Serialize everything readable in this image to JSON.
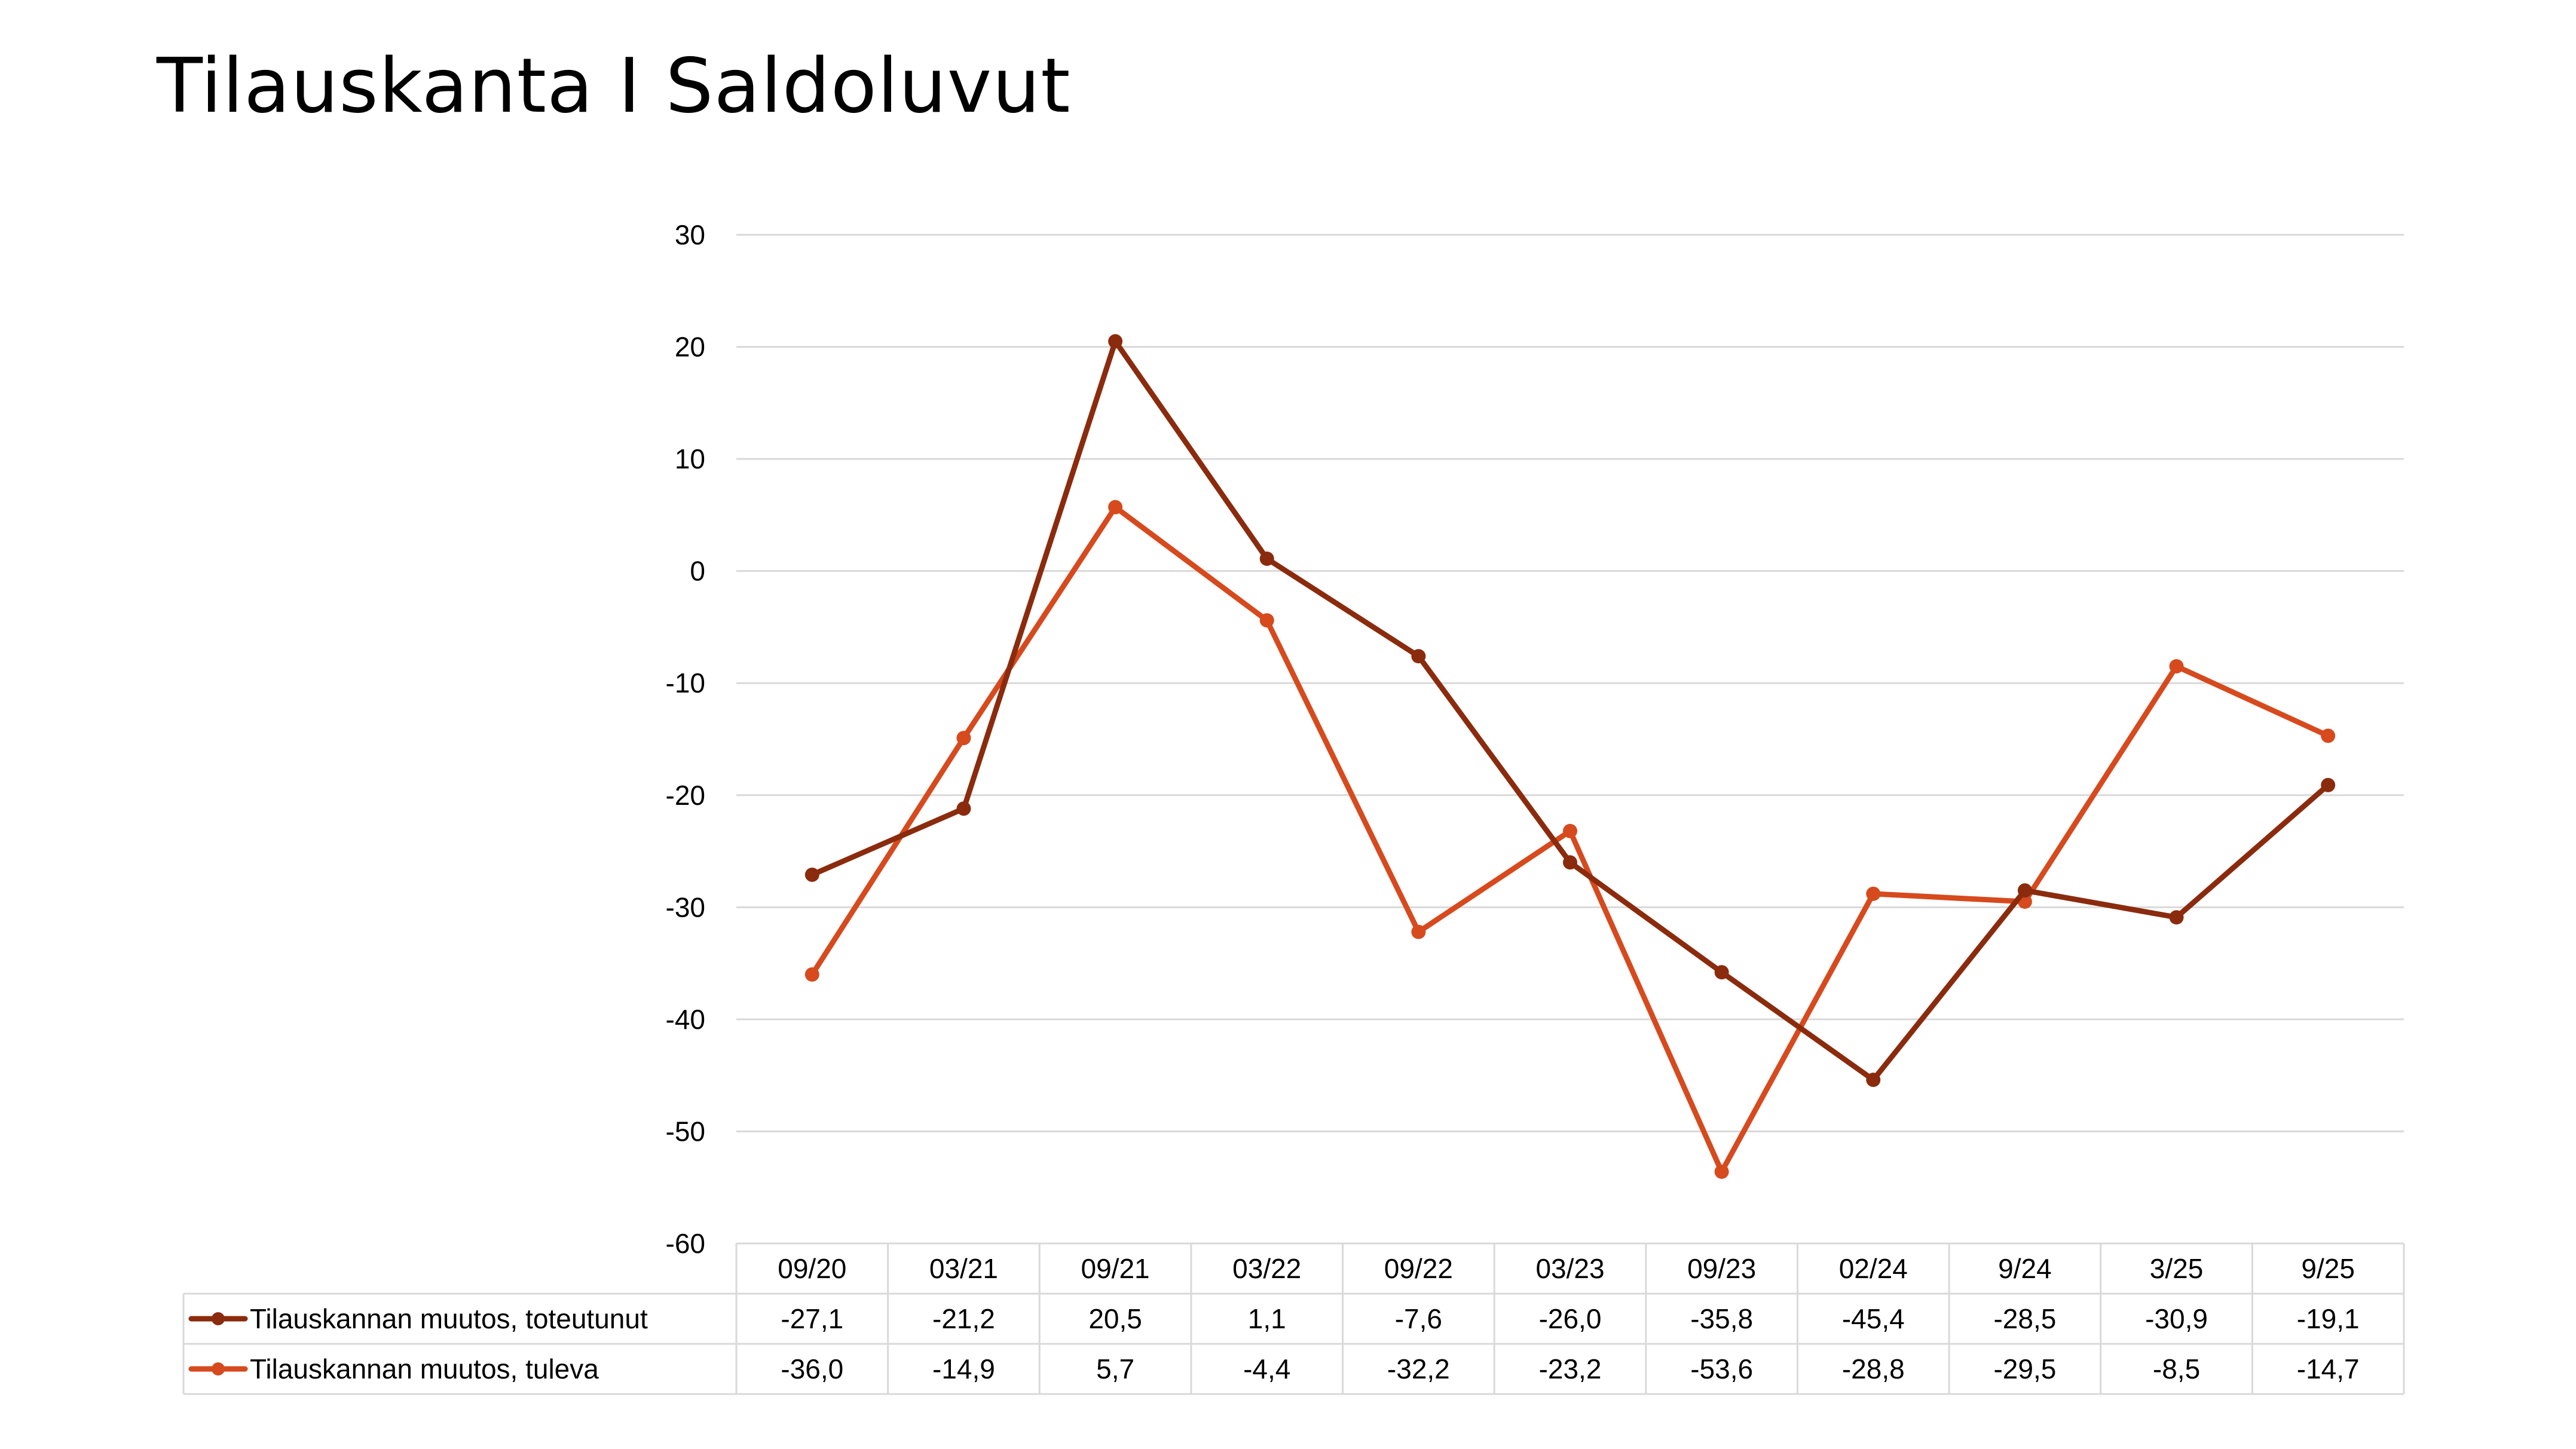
{
  "title": "Tilauskanta I Saldoluvut",
  "colors": {
    "series1": "#8B2B0E",
    "series2": "#D64A1E",
    "grid": "#D9D9D9",
    "table_border": "#D9D9D9"
  },
  "chart_data": {
    "type": "line",
    "title": "",
    "xlabel": "",
    "ylabel": "",
    "categories": [
      "09/20",
      "03/21",
      "09/21",
      "03/22",
      "09/22",
      "03/23",
      "09/23",
      "02/24",
      "9/24",
      "3/25",
      "9/25"
    ],
    "ylim": [
      -60,
      30
    ],
    "yticks": [
      30,
      20,
      10,
      0,
      -10,
      -20,
      -30,
      -40,
      -50,
      -60
    ],
    "grid": true,
    "legend": "data-table-below",
    "series": [
      {
        "name": "Tilauskannan muutos, toteutunut",
        "color": "#8B2B0E",
        "values": [
          -27.1,
          -21.2,
          20.5,
          1.1,
          -7.6,
          -26.0,
          -35.8,
          -45.4,
          -28.5,
          -30.9,
          -19.1
        ],
        "labels": [
          "-27,1",
          "-21,2",
          "20,5",
          "1,1",
          "-7,6",
          "-26,0",
          "-35,8",
          "-45,4",
          "-28,5",
          "-30,9",
          "-19,1"
        ]
      },
      {
        "name": "Tilauskannan muutos, tuleva",
        "color": "#D64A1E",
        "values": [
          -36.0,
          -14.9,
          5.7,
          -4.4,
          -32.2,
          -23.2,
          -53.6,
          -28.8,
          -29.5,
          -8.5,
          -14.7
        ],
        "labels": [
          "-36,0",
          "-14,9",
          "5,7",
          "-4,4",
          "-32,2",
          "-23,2",
          "-53,6",
          "-28,8",
          "-29,5",
          "-8,5",
          "-14,7"
        ]
      }
    ]
  }
}
